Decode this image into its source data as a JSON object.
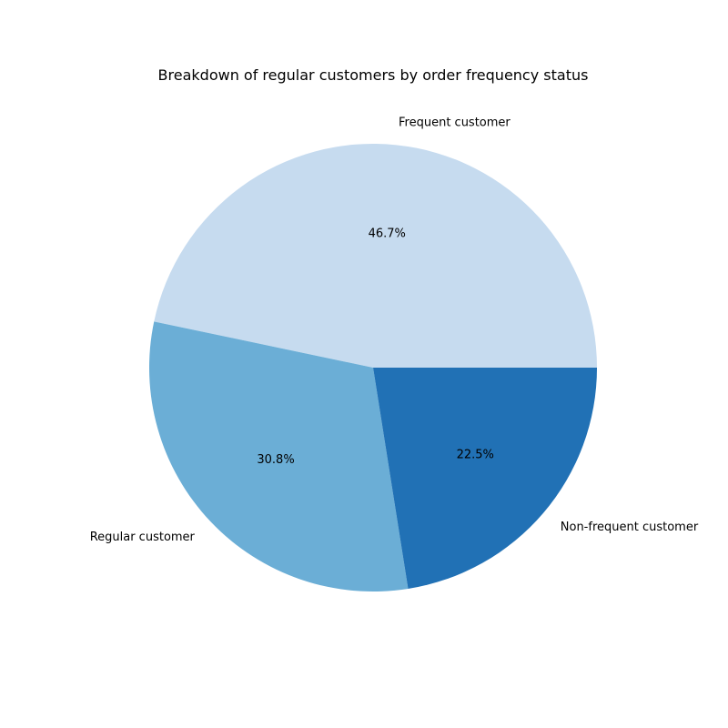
{
  "chart_data": {
    "type": "pie",
    "title": "Breakdown of regular customers by order frequency status",
    "categories": [
      "Frequent customer",
      "Regular customer",
      "Non-frequent customer"
    ],
    "values": [
      46.7,
      30.8,
      22.5
    ],
    "value_labels": [
      "46.7%",
      "30.8%",
      "22.5%"
    ],
    "colors": [
      "#c6dbef",
      "#6baed6",
      "#2171b5"
    ],
    "start_angle_deg": 0,
    "direction": "counterclockwise",
    "legend": "none"
  }
}
